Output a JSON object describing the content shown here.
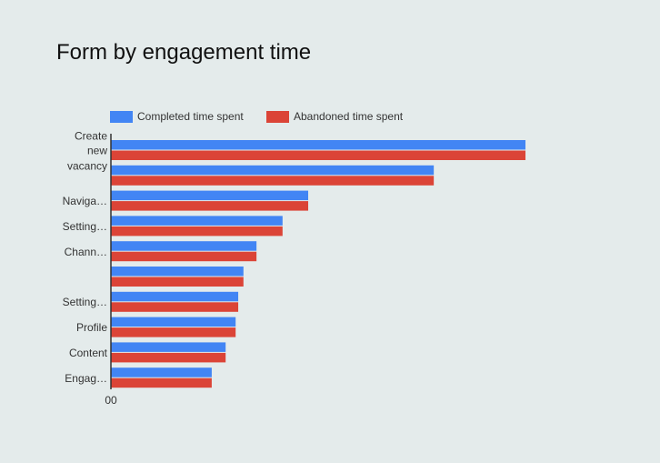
{
  "chart_data": {
    "type": "hbar",
    "title": "Form by engagement time",
    "categories": [
      "Create new vacancy",
      null,
      "Naviga…",
      "Setting…",
      "Chann…",
      null,
      "Setting…",
      "Profile",
      "Content",
      "Engag…"
    ],
    "series": [
      {
        "name": "Completed time spent",
        "color": "#4285f4",
        "values": [
          95.4,
          74.3,
          45.4,
          39.5,
          33.5,
          30.5,
          29.3,
          28.7,
          26.4,
          23.2
        ]
      },
      {
        "name": "Abandoned time spent",
        "color": "#db4437",
        "values": [
          95.4,
          74.3,
          45.4,
          39.5,
          33.5,
          30.5,
          29.3,
          28.7,
          26.4,
          23.2
        ]
      }
    ],
    "xlim": [
      0,
      100
    ],
    "xticks": [
      {
        "value": 0,
        "label": "00"
      }
    ],
    "legend": "top"
  }
}
